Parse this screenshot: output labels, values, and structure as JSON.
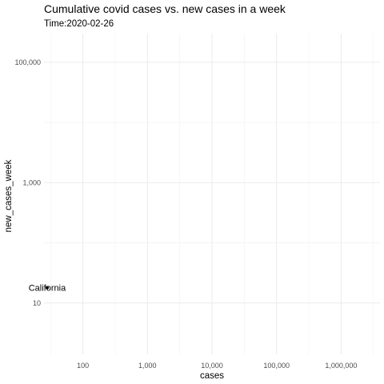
{
  "chart_data": {
    "type": "scatter",
    "title": "Cumulative covid cases vs. new cases in a week",
    "subtitle": "Time:2020-02-26",
    "xlabel": "cases",
    "ylabel": "new_cases_week",
    "x_scale": "log10",
    "y_scale": "log10",
    "xlim": [
      25,
      4000000
    ],
    "ylim": [
      1.4,
      300000
    ],
    "x_ticks": [
      100,
      1000,
      10000,
      100000,
      1000000
    ],
    "x_tick_labels": [
      "100",
      "1,000",
      "10,000",
      "100,000",
      "1,000,000"
    ],
    "y_ticks": [
      10,
      1000,
      100000
    ],
    "y_tick_labels": [
      "10",
      "1,000",
      "100,000"
    ],
    "grid": true,
    "points": [
      {
        "label": "California",
        "x": 28,
        "y": 18
      }
    ],
    "colors": {
      "point": "#000000",
      "grid": "#ebebeb",
      "background": "#ffffff"
    }
  }
}
